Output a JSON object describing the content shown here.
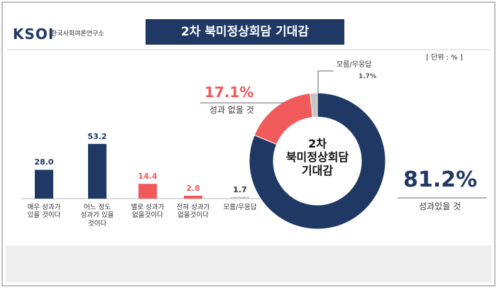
{
  "header": {
    "logo": "KSOI",
    "org": "한국사회여론연구소",
    "title": "2차 북미정상회담 기대감",
    "unit": "[ 단위 : % ]"
  },
  "chart_data": [
    {
      "type": "bar",
      "categories": [
        "매우 성과가\n있을 것이다",
        "어느 정도\n성과가 있을\n것이다",
        "별로 성과가\n없을것이다",
        "전혀 성과가\n없을것이다",
        "모름/무응답"
      ],
      "values": [
        28,
        53.2,
        14.4,
        2.8,
        1.7
      ],
      "value_labels": [
        "28.0",
        "53.2",
        "14.4",
        "2.8",
        "1.7"
      ],
      "colors": [
        "#1f3864",
        "#1f3864",
        "#f05a5a",
        "#f05a5a",
        "#c9c9c9"
      ]
    },
    {
      "type": "pie",
      "hole": true,
      "center_label": "2차\n북미정상회담\n기대감",
      "categories": [
        "성과있을 것",
        "성과 없을 것",
        "모름/무응답"
      ],
      "values": [
        81.2,
        17.1,
        1.7
      ],
      "value_labels": [
        "81.2%",
        "17.1%",
        "1.7%"
      ],
      "colors": [
        "#1f3864",
        "#f05a5a",
        "#c4c4c4"
      ]
    }
  ]
}
